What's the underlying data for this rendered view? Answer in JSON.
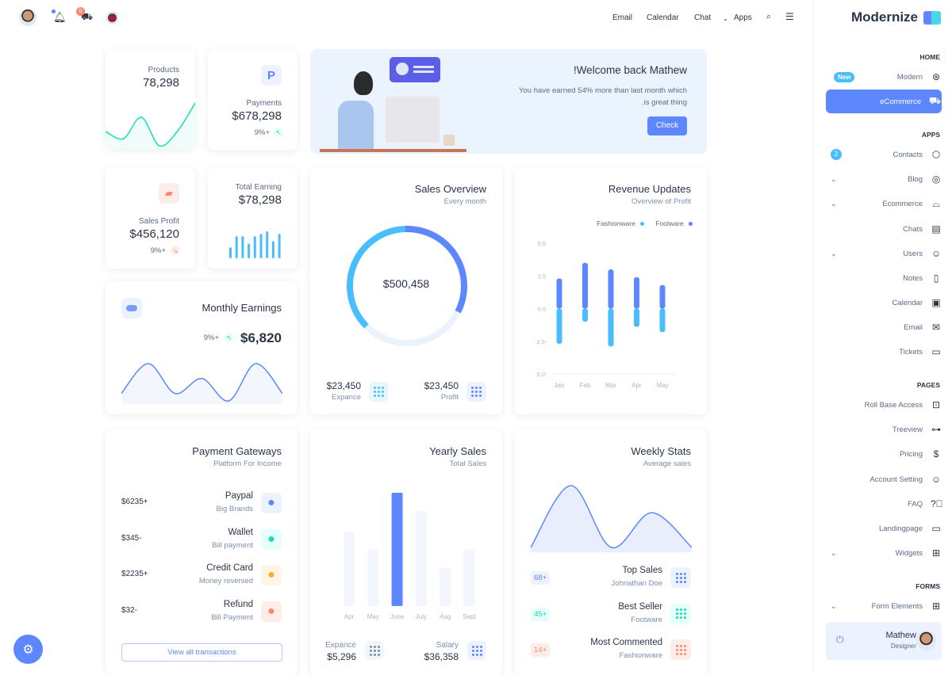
{
  "header": {
    "nav": [
      "Email",
      "Calendar",
      "Chat",
      "Apps"
    ],
    "cart_badge": "0",
    "flag": "uk-flag"
  },
  "sidebar": {
    "logo": "Modernize",
    "sections": {
      "home": "HOME",
      "apps": "APPS",
      "pages": "PAGES",
      "forms": "FORMS"
    },
    "home": [
      {
        "label": "Modern",
        "badge": "New"
      },
      {
        "label": "eCommerce",
        "active": true
      }
    ],
    "apps": [
      {
        "label": "Contacts",
        "badge": "2"
      },
      {
        "label": "Blog"
      },
      {
        "label": "Ecommerce"
      },
      {
        "label": "Chats"
      },
      {
        "label": "Users"
      },
      {
        "label": "Notes"
      },
      {
        "label": "Calendar"
      },
      {
        "label": "Email"
      },
      {
        "label": "Tickets"
      }
    ],
    "pages": [
      {
        "label": "Roll Base Access"
      },
      {
        "label": "Treeview"
      },
      {
        "label": "Pricing"
      },
      {
        "label": "Account Setting"
      },
      {
        "label": "FAQ"
      },
      {
        "label": "Landingpage"
      },
      {
        "label": "Widgets"
      }
    ],
    "forms": [
      {
        "label": "Form Elements"
      }
    ],
    "profile": {
      "name": "Mathew",
      "role": "Designer"
    }
  },
  "products": {
    "label": "Products",
    "value": "78,298",
    "spark": [
      4,
      3,
      6,
      2,
      4,
      8
    ]
  },
  "payments": {
    "label": "Payments",
    "value": "$678,298",
    "change": "9%+"
  },
  "welcome": {
    "title": "!Welcome back Mathew",
    "line1": "You have earned 54% more than last month which",
    "line2": ".is great thing",
    "button": "Check"
  },
  "sales_profit": {
    "label": "Sales Profit",
    "value": "$456,120",
    "change": "9%+"
  },
  "total_earning": {
    "label": "Total Earning",
    "value": "$78,298",
    "bars": [
      4.5,
      9,
      9,
      6,
      9,
      10,
      11,
      7,
      10
    ]
  },
  "monthly": {
    "title": "Monthly Earnings",
    "value": "$6,820",
    "change": "9%+",
    "spark": [
      3,
      7,
      3,
      5,
      2,
      7,
      3
    ]
  },
  "sales_overview": {
    "title": "Sales Overview",
    "subtitle": "Every month",
    "total": "$500,458",
    "segments": [
      37,
      33,
      30
    ],
    "expance_value": "$23,450",
    "expance_label": "Expance",
    "profit_value": "$23,450",
    "profit_label": "Profit"
  },
  "chart_data": [
    {
      "type": "bar",
      "title": "Revenue Updates",
      "subtitle": "Overview of Profit",
      "categories": [
        "Jan",
        "Feb",
        "Mar",
        "Apr",
        "May"
      ],
      "series": [
        {
          "name": "Fashionware",
          "color": "#49beff",
          "values": [
            -2.7,
            -1.0,
            -2.9,
            -1.4,
            -1.8
          ]
        },
        {
          "name": "Footware",
          "color": "#5d87ff",
          "values": [
            2.3,
            3.5,
            3.0,
            2.4,
            1.8
          ]
        }
      ],
      "yticks": [
        "5.0",
        "2.5",
        "0.0",
        "2.5-",
        "5.0-"
      ],
      "ylim": [
        -5,
        5
      ],
      "legend": "top-right"
    },
    {
      "type": "bar",
      "title": "Yearly Sales",
      "subtitle": "Total Sales",
      "categories": [
        "Apr",
        "May",
        "June",
        "July",
        "Aug",
        "Sept"
      ],
      "values": [
        65,
        50,
        100,
        84,
        34,
        50
      ],
      "highlight": "June"
    }
  ],
  "yearly_footer": {
    "expance_label": "Expance",
    "expance_value": "$5,296",
    "salary_label": "Salary",
    "salary_value": "$36,358"
  },
  "gateways": {
    "title": "Payment Gateways",
    "subtitle": "Platform For Income",
    "button": "View all transactions",
    "items": [
      {
        "name": "Paypal",
        "sub": "Big Brands",
        "amount": "$6235+",
        "color": "#ecf2ff",
        "fg": "#5d87ff"
      },
      {
        "name": "Wallet",
        "sub": "Bill payment",
        "amount": "$345-",
        "color": "#e6fffa",
        "fg": "#13deb9"
      },
      {
        "name": "Credit Card",
        "sub": "Money reversed",
        "amount": "$2235+",
        "color": "#fef5e5",
        "fg": "#ffae1f"
      },
      {
        "name": "Refund",
        "sub": "Bill Payment",
        "amount": "$32-",
        "color": "#fdede8",
        "fg": "#fa896b"
      }
    ]
  },
  "weekly": {
    "title": "Weekly Stats",
    "subtitle": "Average sales",
    "curve": [
      1,
      9,
      1,
      5.5,
      1
    ],
    "items": [
      {
        "name": "Top Sales",
        "sub": "Johnathan Doe",
        "pill": "68+",
        "bg": "#ecf2ff",
        "fg": "#5d87ff"
      },
      {
        "name": "Best Seller",
        "sub": "Footware",
        "pill": "45+",
        "bg": "#e6fffa",
        "fg": "#13deb9"
      },
      {
        "name": "Most Commented",
        "sub": "Fashionware",
        "pill": "14+",
        "bg": "#fdede8",
        "fg": "#fa896b"
      }
    ]
  },
  "colors": {
    "primary": "#5d87ff",
    "secondary": "#49beff",
    "success": "#13deb9",
    "warning": "#ffae1f",
    "error": "#fa896b"
  }
}
